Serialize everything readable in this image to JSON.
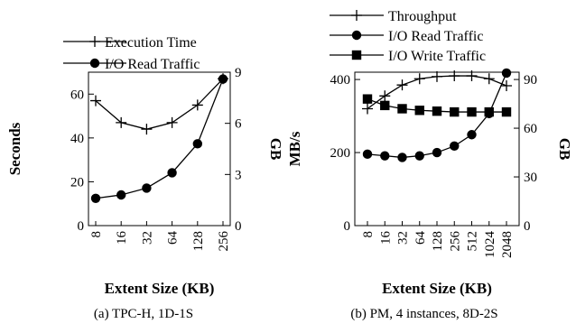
{
  "chart_data": [
    {
      "type": "line",
      "caption": "(a) TPC-H, 1D-1S",
      "xlabel": "Extent Size (KB)",
      "ylabel_left": "Seconds",
      "ylabel_right": "GB",
      "categories": [
        "8",
        "16",
        "32",
        "64",
        "128",
        "256"
      ],
      "y_left": {
        "range": [
          0,
          70
        ],
        "ticks": [
          "0",
          "20",
          "40",
          "60"
        ]
      },
      "y_right": {
        "range": [
          0,
          9
        ],
        "ticks": [
          "0",
          "3",
          "6",
          "9"
        ]
      },
      "legend_position": "top",
      "series": [
        {
          "name": "Execution Time",
          "axis": "left",
          "marker": "plus",
          "values": [
            57,
            47,
            44,
            47,
            55,
            67
          ]
        },
        {
          "name": "I/O Read Traffic",
          "axis": "right",
          "marker": "circle",
          "values": [
            1.6,
            1.8,
            2.2,
            3.1,
            4.8,
            8.6
          ]
        }
      ]
    },
    {
      "type": "line",
      "caption": "(b) PM, 4 instances, 8D-2S",
      "xlabel": "Extent Size (KB)",
      "ylabel_left": "MB/s",
      "ylabel_right": "GB",
      "categories": [
        "8",
        "16",
        "32",
        "64",
        "128",
        "256",
        "512",
        "1024",
        "2048"
      ],
      "y_left": {
        "range": [
          0,
          420
        ],
        "ticks": [
          "0",
          "200",
          "400"
        ]
      },
      "y_right": {
        "range": [
          0,
          94.5
        ],
        "ticks": [
          "0",
          "30",
          "60",
          "90"
        ]
      },
      "legend_position": "top",
      "series": [
        {
          "name": "Throughput",
          "axis": "left",
          "marker": "plus",
          "values": [
            320,
            355,
            385,
            402,
            408,
            410,
            410,
            402,
            383
          ]
        },
        {
          "name": "I/O Read Traffic",
          "axis": "right",
          "marker": "circle",
          "values": [
            44,
            43,
            42,
            43,
            45,
            49,
            56,
            69,
            94
          ]
        },
        {
          "name": "I/O Write Traffic",
          "axis": "right",
          "marker": "square",
          "values": [
            78,
            74,
            72,
            71,
            70.5,
            70,
            70,
            70,
            70
          ]
        }
      ]
    }
  ]
}
